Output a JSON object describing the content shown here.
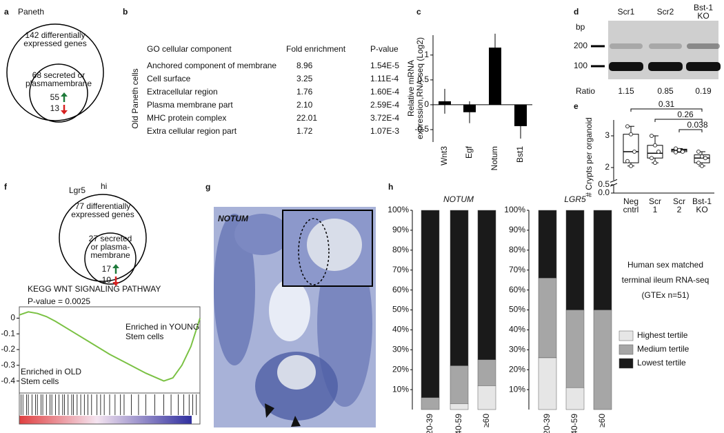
{
  "panel_labels": [
    "a",
    "b",
    "c",
    "d",
    "e",
    "f",
    "g",
    "h"
  ],
  "venn_a": {
    "title": "Paneth",
    "outer": [
      "142 differentially",
      "expressed genes"
    ],
    "inner": [
      "68 secreted or",
      "plasmamembrane"
    ],
    "up": 55,
    "down": 13
  },
  "table_b": {
    "row_label": "Old Paneth cells",
    "header": [
      "GO cellular component",
      "Fold enrichment",
      "P-value"
    ],
    "rows": [
      [
        "Anchored component of membrane",
        "8.96",
        "1.54E-5"
      ],
      [
        "Cell surface",
        "3.25",
        "1.11E-4"
      ],
      [
        "Extracellular region",
        "1.76",
        "1.60E-4"
      ],
      [
        "Plasma membrane part",
        "2.10",
        "2.59E-4"
      ],
      [
        "MHC protein complex",
        "22.01",
        "3.72E-4"
      ],
      [
        "Extra cellular region part",
        "1.72",
        "1.07E-3"
      ]
    ]
  },
  "gel_d": {
    "lanes": [
      [
        "Scr1"
      ],
      [
        "Scr2"
      ],
      [
        "Bst-1",
        "KO"
      ]
    ],
    "size_label": "bp",
    "markers": [
      200,
      100
    ],
    "ratio_label": "Ratio",
    "ratios": [
      1.15,
      0.85,
      0.19
    ]
  },
  "venn_f": {
    "title": "Lgr5",
    "title_sup": "hi",
    "outer": [
      "77 differentially",
      "expressed genes"
    ],
    "inner": [
      "27 secreted",
      "or plasma-",
      "membrane"
    ],
    "up": 17,
    "down": 10
  },
  "image_g": {
    "label": "NOTUM"
  },
  "h_note": [
    "Human sex matched",
    "terminal ileum RNA-seq",
    "(GTEx n=51)"
  ],
  "chart_data": [
    {
      "type": "bar",
      "ylabel": [
        "Relative mRNA",
        "expression,RNA-seq (Log2)"
      ],
      "categories": [
        "Wnt3",
        "Egf",
        "Notum",
        "Bst1"
      ],
      "values": [
        0.07,
        -0.15,
        1.15,
        -0.43
      ],
      "errors": [
        0.25,
        0.22,
        0.28,
        0.25
      ],
      "color": "#000000",
      "ylim": [
        -0.75,
        1.4
      ],
      "yticks": [
        -0.5,
        0,
        0.5,
        1
      ]
    },
    {
      "type": "box",
      "ylabel": "# Crypts per organoid",
      "categories": [
        [
          "Neg",
          "cntrl"
        ],
        [
          "Scr",
          "1"
        ],
        [
          "Scr",
          "2"
        ],
        [
          "Bst-1",
          "KO"
        ]
      ],
      "boxes": [
        {
          "min": 2.05,
          "q1": 2.15,
          "median": 2.5,
          "q3": 3.05,
          "max": 3.3
        },
        {
          "min": 2.15,
          "q1": 2.3,
          "median": 2.45,
          "q3": 2.7,
          "max": 3.0
        },
        {
          "min": 2.48,
          "q1": 2.5,
          "median": 2.55,
          "q3": 2.58,
          "max": 2.6
        },
        {
          "min": 2.05,
          "q1": 2.15,
          "median": 2.3,
          "q3": 2.4,
          "max": 2.5
        }
      ],
      "points": [
        [
          3.3,
          3.05,
          2.5,
          2.2,
          2.05
        ],
        [
          3.0,
          2.7,
          2.5,
          2.3,
          2.15
        ],
        [
          2.6,
          2.55,
          2.5,
          2.48
        ],
        [
          2.5,
          2.35,
          2.3,
          2.15,
          2.05
        ]
      ],
      "ylim": [
        0,
        3.5
      ],
      "axis_break": [
        0.5,
        1.6
      ],
      "yticks": [
        {
          "value": 0,
          "label": "0.0"
        },
        0.5,
        2,
        3
      ],
      "comparisons": [
        {
          "pair": [
            0,
            3
          ],
          "p": 0.31
        },
        {
          "pair": [
            1,
            3
          ],
          "p": 0.26
        },
        {
          "pair": [
            2,
            3
          ],
          "p": 0.038
        }
      ]
    },
    {
      "type": "line",
      "title": "KEGG WNT SIGNALING PATHWAY",
      "subtitle": "P-value = 0.0025",
      "x": [
        0,
        5,
        10,
        15,
        20,
        30,
        40,
        50,
        60,
        70,
        78,
        80,
        85,
        90,
        95,
        100
      ],
      "values": [
        0.02,
        0.04,
        0.03,
        0.01,
        -0.02,
        -0.09,
        -0.16,
        -0.23,
        -0.29,
        -0.35,
        -0.39,
        -0.4,
        -0.38,
        -0.3,
        -0.18,
        0
      ],
      "color": "#7ac143",
      "xlim": [
        0,
        100
      ],
      "ylim": [
        -0.45,
        0.05
      ],
      "yticks": [
        0,
        -0.1,
        -0.2,
        -0.3,
        -0.4
      ],
      "annotations": [
        {
          "text": [
            "Enriched in YOUNG",
            "Stem cells"
          ]
        },
        {
          "text": [
            "Enriched in OLD",
            "Stem cells"
          ]
        }
      ],
      "hits": [
        1,
        2,
        4,
        5,
        7,
        9,
        10,
        12,
        13,
        15,
        17,
        18,
        20,
        22,
        24,
        25,
        27,
        29,
        30,
        32,
        34,
        36,
        38,
        40,
        43,
        45,
        47,
        50,
        53,
        56,
        58,
        62,
        66,
        70,
        75,
        80,
        84,
        88,
        91,
        94,
        96,
        98
      ]
    },
    {
      "type": "stacked_bar",
      "facets": [
        "NOTUM",
        "LGR5"
      ],
      "categories": [
        "20-39",
        "40-59",
        "≥60"
      ],
      "series": [
        {
          "name": "Highest tertile",
          "color": "#e6e6e6",
          "values": [
            [
              0,
              3,
              12
            ],
            [
              26,
              11,
              0
            ]
          ]
        },
        {
          "name": "Medium tertile",
          "color": "#a6a6a6",
          "values": [
            [
              6,
              19,
              13
            ],
            [
              40,
              39,
              50
            ]
          ]
        },
        {
          "name": "Lowest tertile",
          "color": "#1a1a1a",
          "values": [
            [
              94,
              78,
              75
            ],
            [
              34,
              50,
              50
            ]
          ]
        }
      ],
      "ylim": [
        0,
        100
      ],
      "yticks": [
        {
          "value": 10,
          "label": "10%"
        },
        {
          "value": 20,
          "label": "20%"
        },
        {
          "value": 30,
          "label": "30%"
        },
        {
          "value": 40,
          "label": "40%"
        },
        {
          "value": 50,
          "label": "50%"
        },
        {
          "value": 60,
          "label": "60%"
        },
        {
          "value": 70,
          "label": "70%"
        },
        {
          "value": 80,
          "label": "80%"
        },
        {
          "value": 90,
          "label": "90%"
        },
        {
          "value": 100,
          "label": "100%"
        }
      ]
    }
  ]
}
